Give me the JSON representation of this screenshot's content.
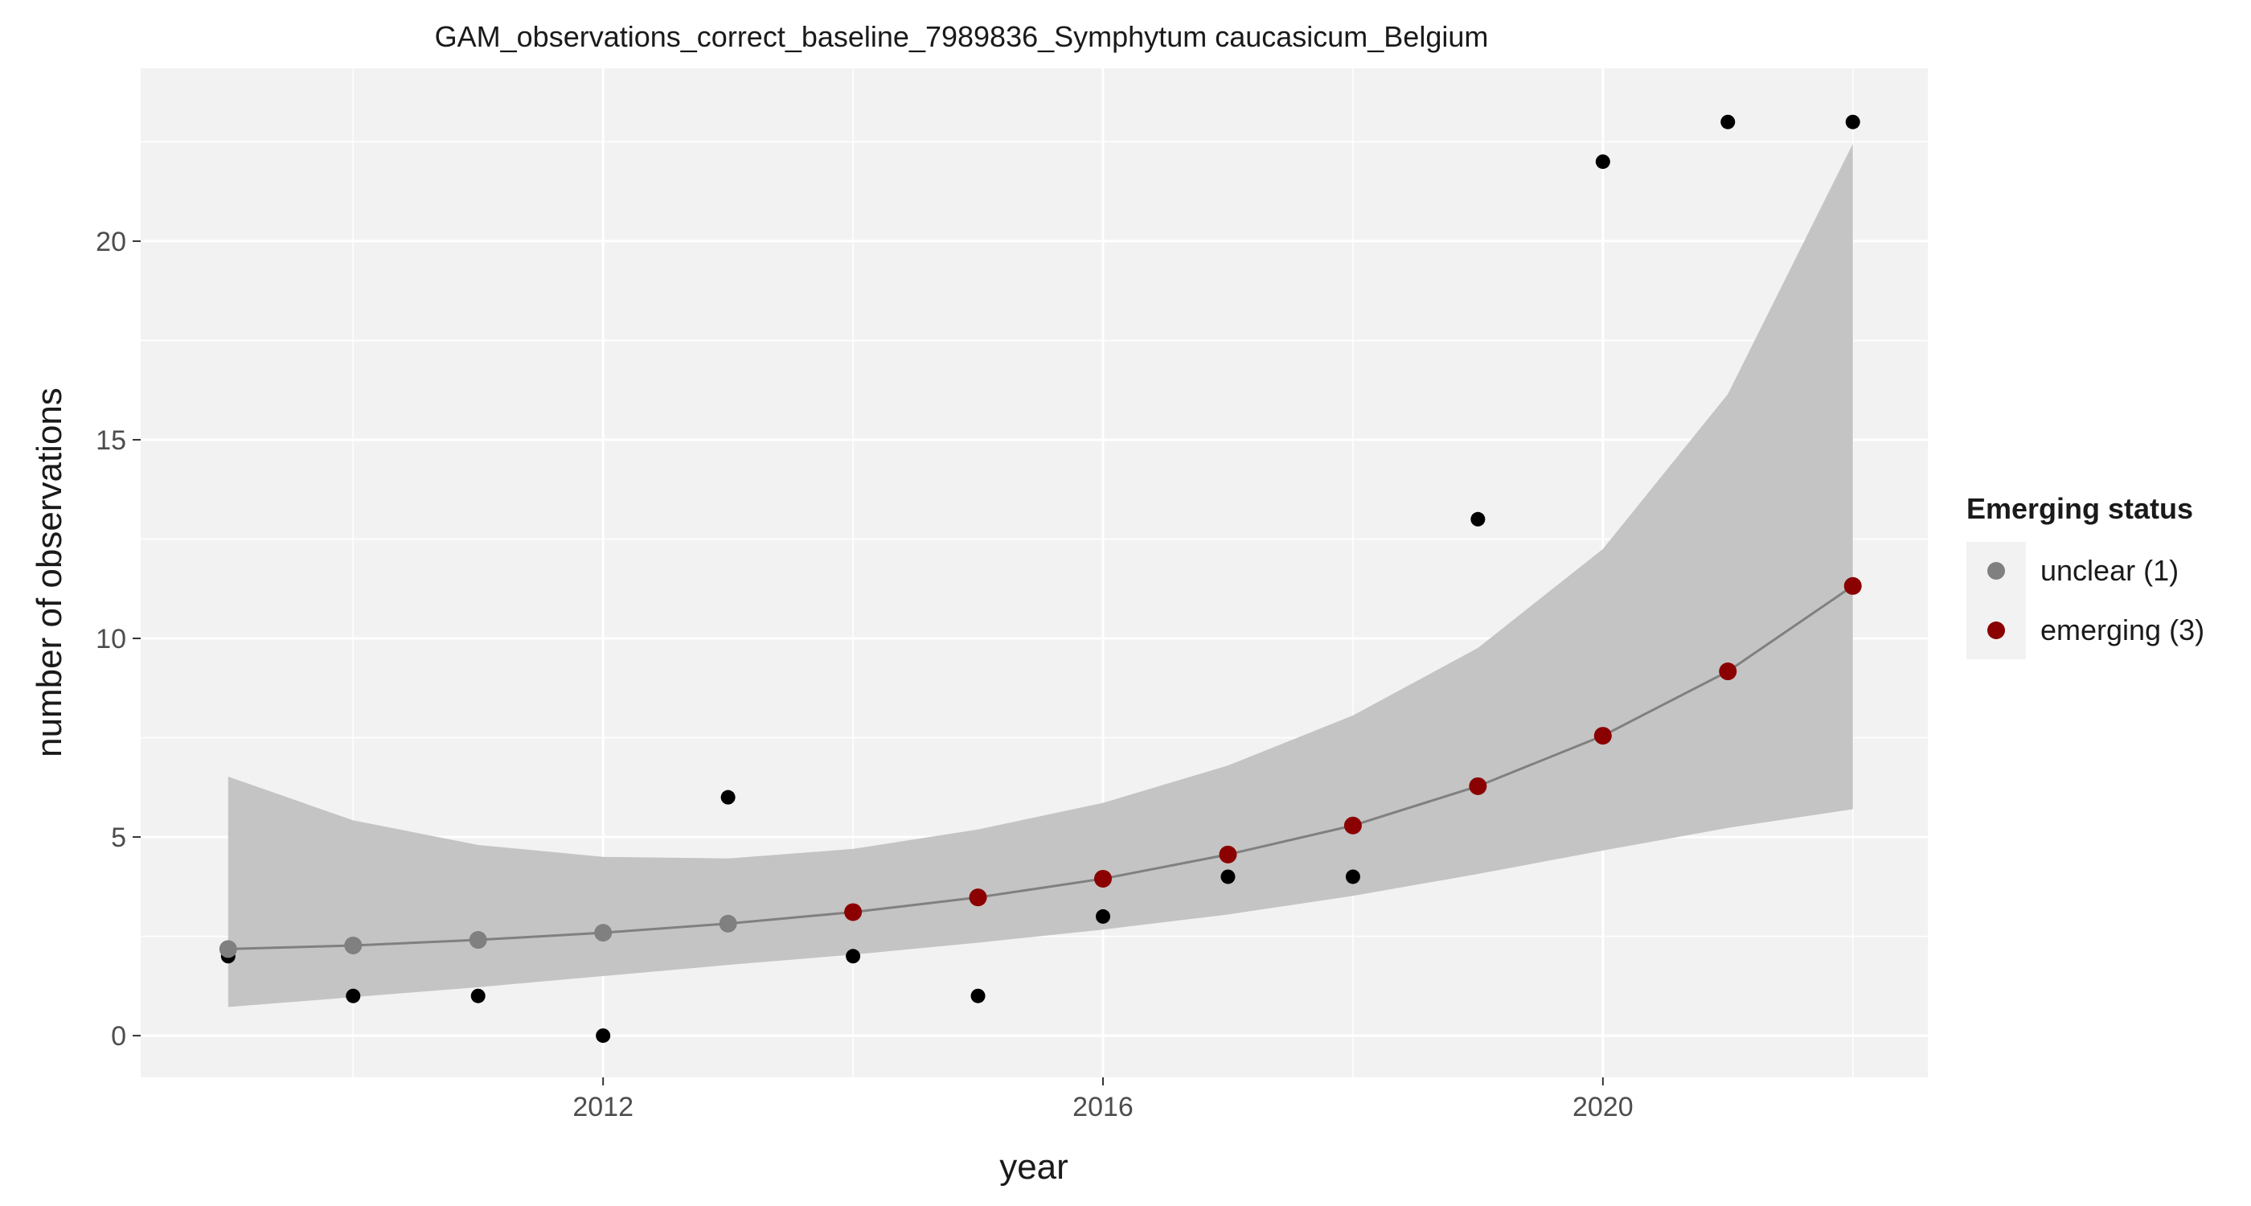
{
  "chart_data": {
    "type": "scatter",
    "title": "GAM_observations_correct_baseline_7989836_Symphytum caucasicum_Belgium",
    "xlabel": "year",
    "ylabel": "number of observations",
    "xlim": [
      2008.3,
      2022.6
    ],
    "ylim": [
      -1.05,
      24.35
    ],
    "x_ticks": [
      2012,
      2016,
      2020
    ],
    "y_ticks": [
      0,
      5,
      10,
      15,
      20
    ],
    "grid": true,
    "legend_position": "right",
    "observations": {
      "x": [
        2009,
        2010,
        2011,
        2012,
        2013,
        2014,
        2015,
        2016,
        2017,
        2018,
        2019,
        2020,
        2021,
        2022
      ],
      "y": [
        2,
        1,
        1,
        0,
        6,
        2,
        1,
        3,
        4,
        4,
        13,
        22,
        23,
        23
      ],
      "color": "#000000"
    },
    "gam_fit": {
      "x": [
        2009,
        2010,
        2011,
        2012,
        2013,
        2014,
        2015,
        2016,
        2017,
        2018,
        2019,
        2020,
        2021,
        2022
      ],
      "y": [
        2.18,
        2.27,
        2.41,
        2.59,
        2.82,
        3.11,
        3.48,
        3.95,
        4.56,
        5.29,
        6.28,
        7.55,
        9.17,
        11.32
      ],
      "lower": [
        0.72,
        0.97,
        1.22,
        1.5,
        1.78,
        2.04,
        2.34,
        2.67,
        3.05,
        3.52,
        4.07,
        4.66,
        5.23,
        5.7
      ],
      "upper": [
        6.52,
        5.42,
        4.8,
        4.5,
        4.46,
        4.7,
        5.19,
        5.86,
        6.8,
        8.06,
        9.76,
        12.25,
        16.15,
        22.45
      ],
      "status": [
        "unclear (1)",
        "unclear (1)",
        "unclear (1)",
        "unclear (1)",
        "unclear (1)",
        "emerging (3)",
        "emerging (3)",
        "emerging (3)",
        "emerging (3)",
        "emerging (3)",
        "emerging (3)",
        "emerging (3)",
        "emerging (3)",
        "emerging (3)"
      ],
      "line_color": "#808080",
      "band_color": "#c4c4c4"
    },
    "legend": {
      "title": "Emerging status",
      "entries": [
        {
          "label": "unclear (1)",
          "color": "#808080"
        },
        {
          "label": "emerging (3)",
          "color": "#8b0000"
        }
      ]
    },
    "colors": {
      "panel_background": "#f2f2f2",
      "grid": "#ffffff"
    }
  }
}
